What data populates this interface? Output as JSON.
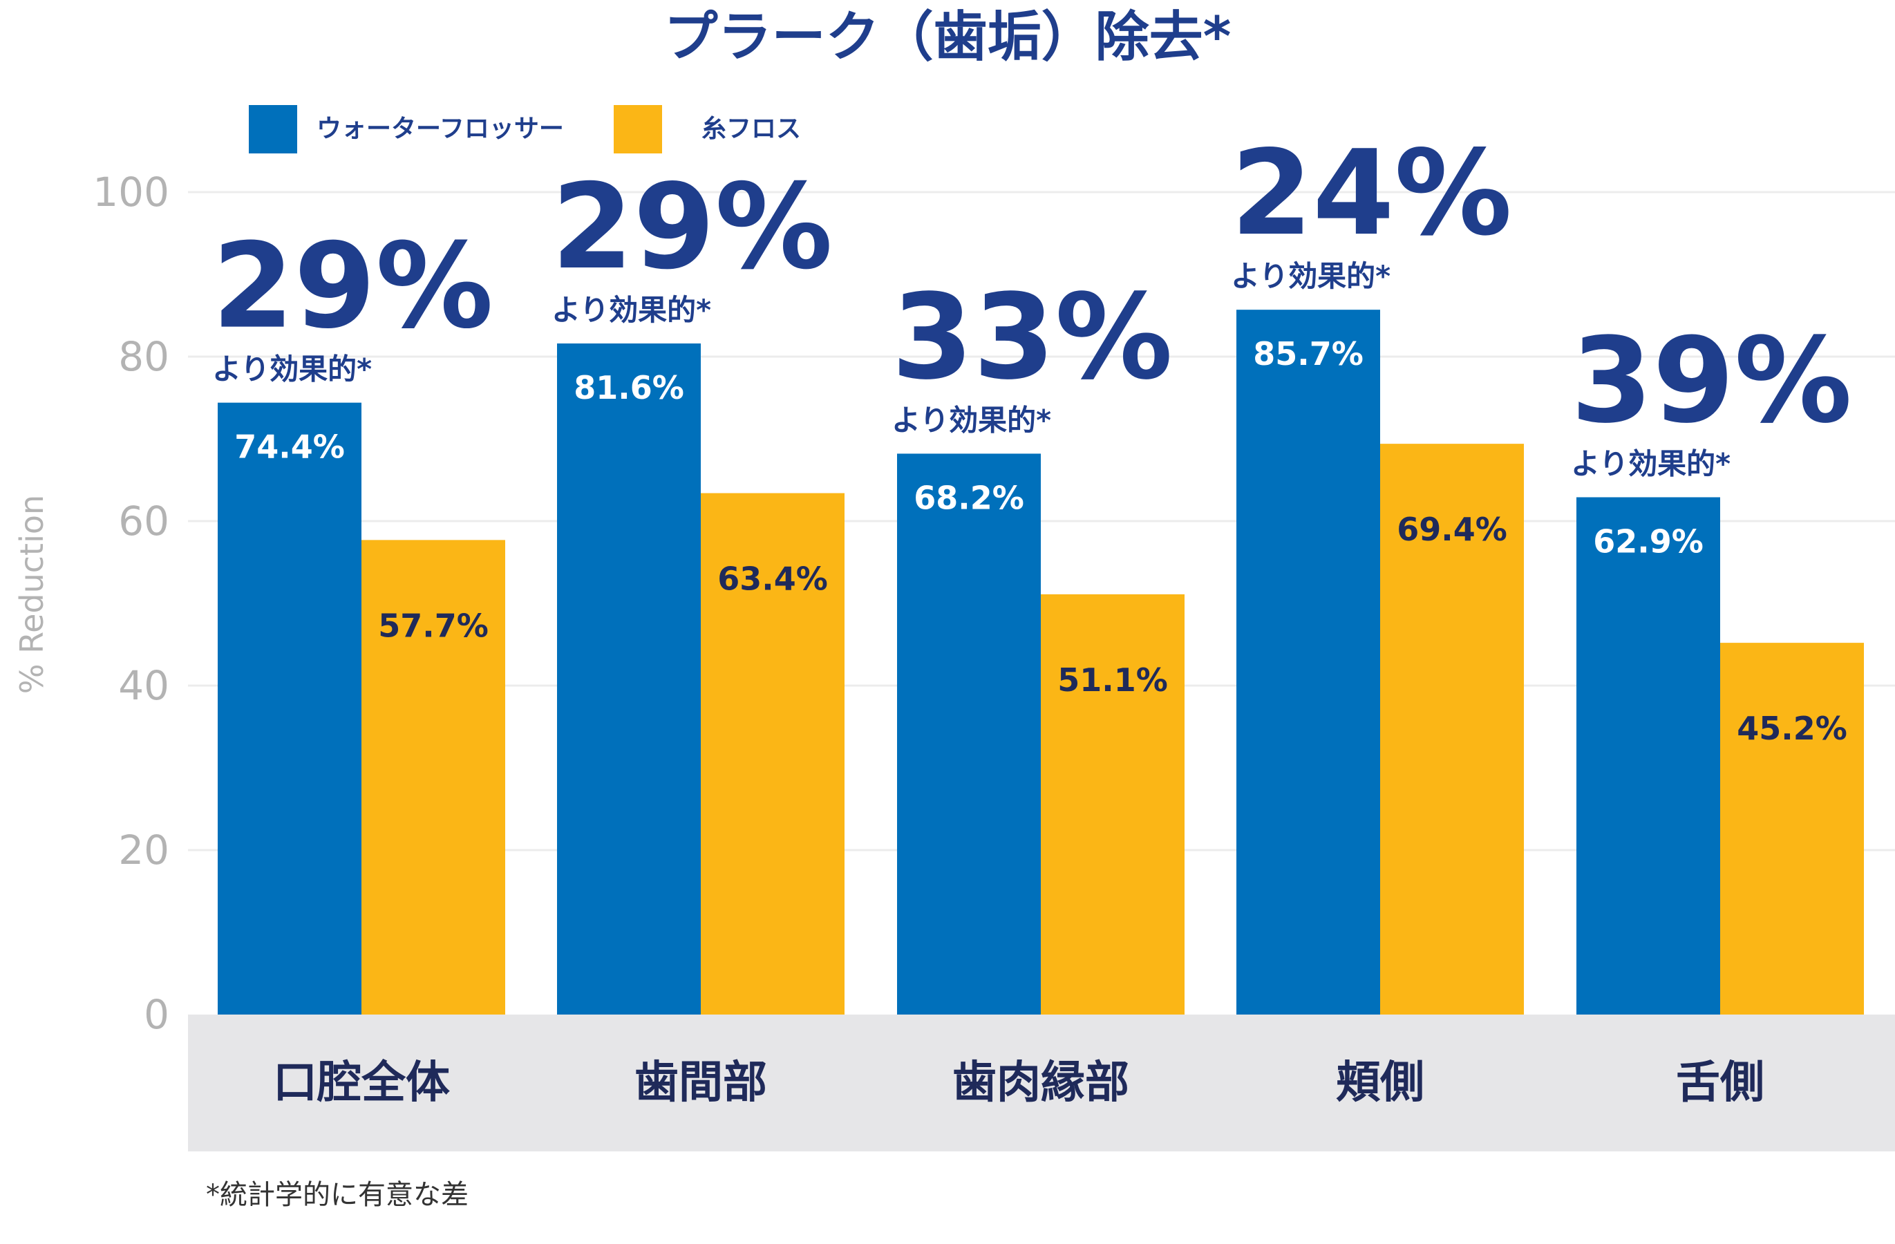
{
  "chart_data": {
    "type": "bar",
    "title": "プラーク（歯垢）除去*",
    "ylabel": "% Reduction",
    "xlabel": "",
    "ylim": [
      0,
      100
    ],
    "yticks": [
      0,
      20,
      40,
      60,
      80,
      100
    ],
    "categories": [
      "口腔全体",
      "歯間部",
      "歯肉縁部",
      "頬側",
      "舌側"
    ],
    "series": [
      {
        "name": "ウォーターフロッサー",
        "color": "#0070bb",
        "values": [
          74.4,
          81.6,
          68.2,
          85.7,
          62.9
        ],
        "labels": [
          "74.4%",
          "81.6%",
          "68.2%",
          "85.7%",
          "62.9%"
        ]
      },
      {
        "name": "糸フロス",
        "color": "#fbb616",
        "values": [
          57.7,
          63.4,
          51.1,
          69.4,
          45.2
        ],
        "labels": [
          "57.7%",
          "63.4%",
          "51.1%",
          "69.4%",
          "45.2%"
        ]
      }
    ],
    "annotations": [
      {
        "percent": "29%",
        "text": "より効果的*"
      },
      {
        "percent": "29%",
        "text": "より効果的*"
      },
      {
        "percent": "33%",
        "text": "より効果的*"
      },
      {
        "percent": "24%",
        "text": "より効果的*"
      },
      {
        "percent": "39%",
        "text": "より効果的*"
      }
    ],
    "grid": true,
    "legend": "top-left",
    "footnote": "*統計学的に有意な差"
  }
}
